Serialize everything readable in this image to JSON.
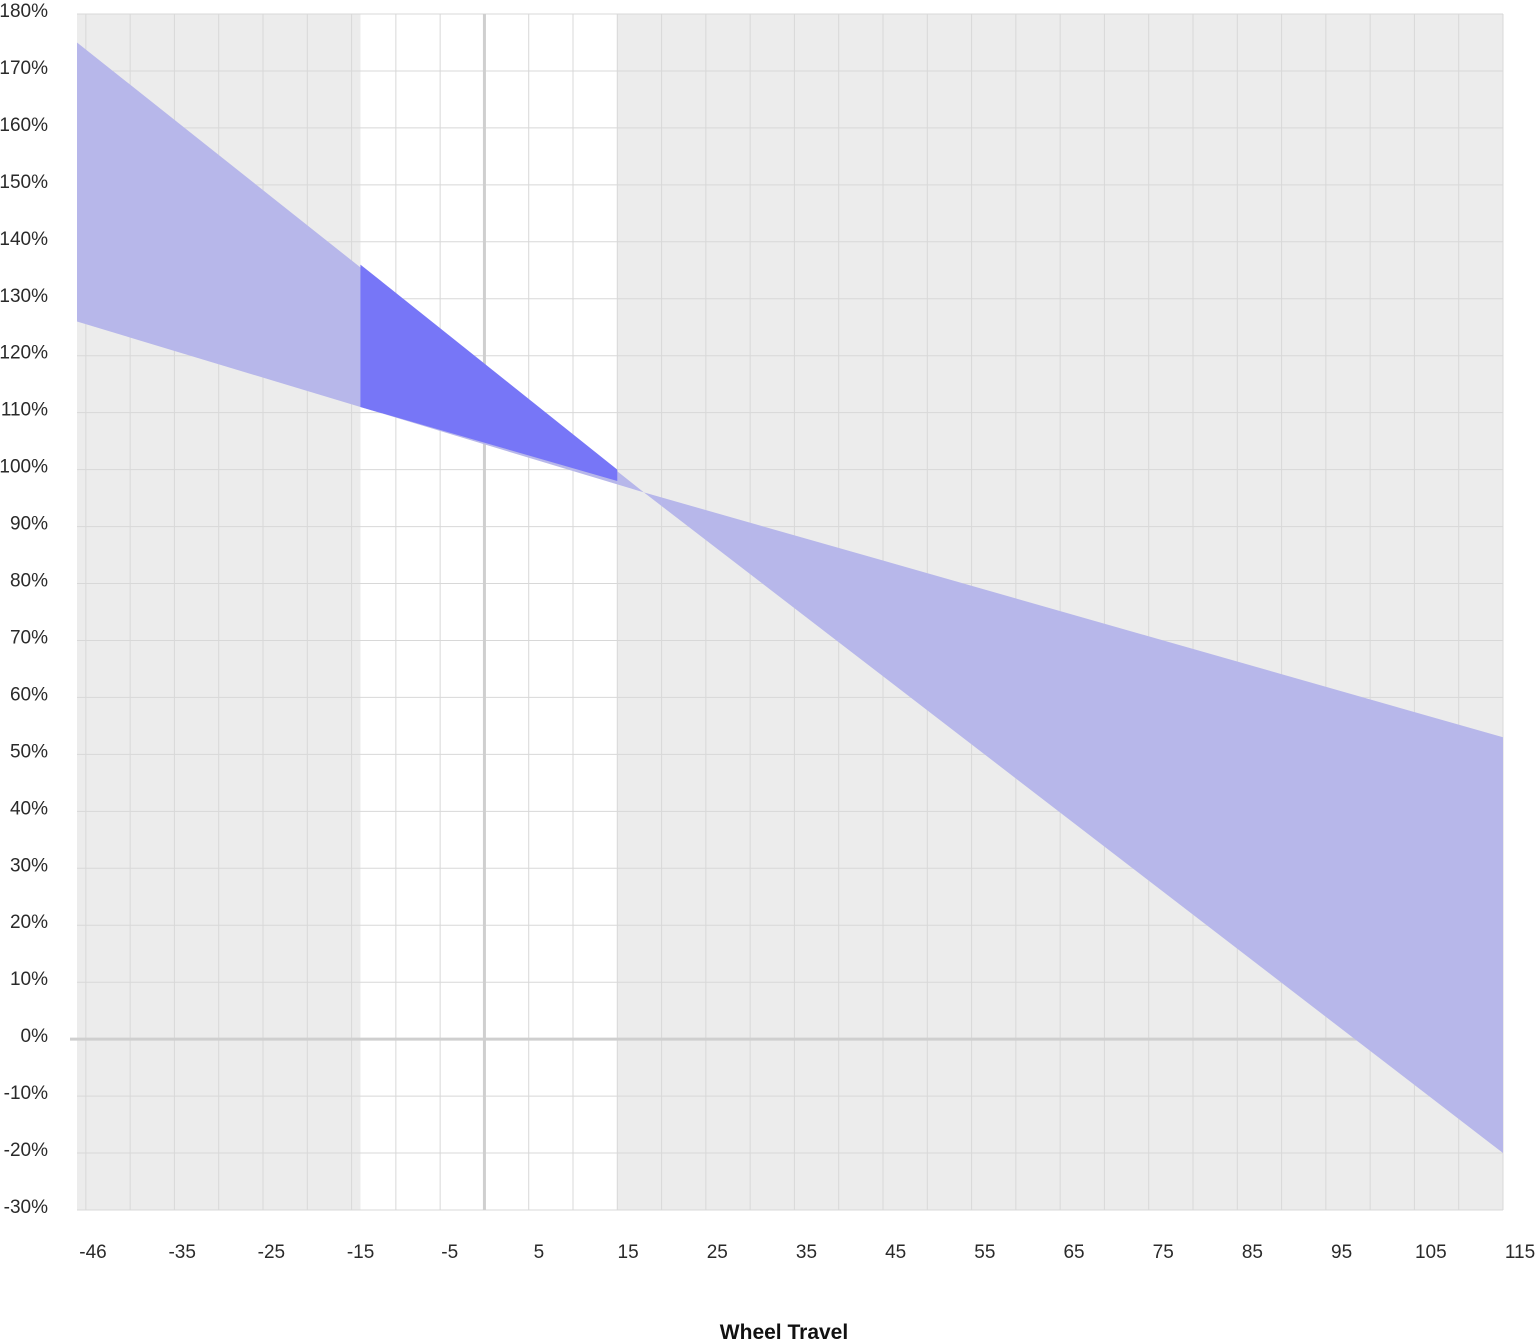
{
  "chart_data": {
    "type": "area",
    "title": "",
    "xlabel": "Wheel Travel",
    "ylabel": "",
    "x_tick_labels": [
      "-46",
      "-35",
      "-25",
      "-15",
      "-5",
      "5",
      "15",
      "25",
      "35",
      "45",
      "55",
      "65",
      "75",
      "85",
      "95",
      "105",
      "115"
    ],
    "y_tick_labels": [
      "180%",
      "170%",
      "160%",
      "150%",
      "140%",
      "130%",
      "120%",
      "110%",
      "100%",
      "90%",
      "80%",
      "70%",
      "60%",
      "50%",
      "40%",
      "30%",
      "20%",
      "10%",
      "0%",
      "-10%",
      "-20%",
      "-30%"
    ],
    "xlim": [
      -46,
      115
    ],
    "ylim": [
      -30,
      180
    ],
    "grid": true,
    "highlight_range": {
      "x": [
        -14,
        15
      ]
    },
    "series": [
      {
        "x": [
          -46,
          18,
          115
        ],
        "upper": [
          175,
          96,
          53
        ],
        "lower": [
          126,
          96,
          -20
        ]
      }
    ],
    "highlight_area": {
      "x": [
        -14,
        15
      ],
      "upper": [
        136,
        100
      ],
      "lower": [
        111,
        98
      ]
    },
    "colors": {
      "plot_background": "#ececec",
      "highlight_background": "#ffffff",
      "grid": "#d8d8d8",
      "axis_lines": "#cfcfcf",
      "band_fill": "#b7b7ea",
      "highlight_fill": "#7776f7"
    }
  }
}
